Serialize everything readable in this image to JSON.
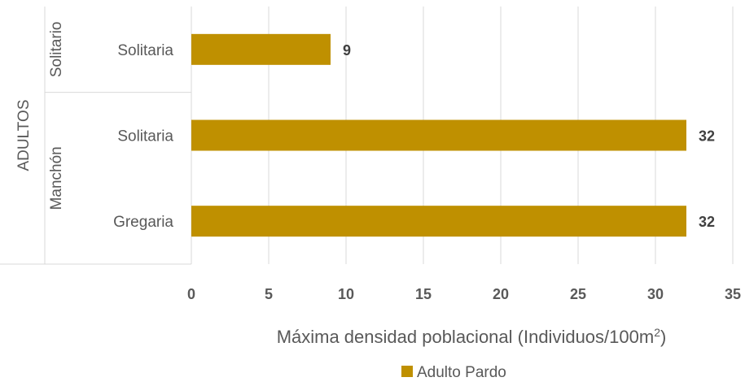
{
  "chart_data": {
    "type": "bar",
    "orientation": "horizontal",
    "outer_group": "ADULTOS",
    "groups": [
      {
        "name": "Solitario",
        "categories": [
          "Solitaria"
        ],
        "values": [
          9
        ]
      },
      {
        "name": "Manchón",
        "categories": [
          "Solitaria",
          "Gregaria"
        ],
        "values": [
          32,
          32
        ]
      }
    ],
    "series": [
      {
        "name": "Adulto Pardo",
        "color": "#BF9000"
      }
    ],
    "xlim": [
      0,
      35
    ],
    "xticks": [
      0,
      5,
      10,
      15,
      20,
      25,
      30,
      35
    ],
    "xlabel": "Máxima densidad poblacional (Individuos/100m",
    "xlabel_superscript": "2",
    "xlabel_suffix": ")",
    "grid": true,
    "data_labels": true,
    "legend_position": "bottom"
  }
}
